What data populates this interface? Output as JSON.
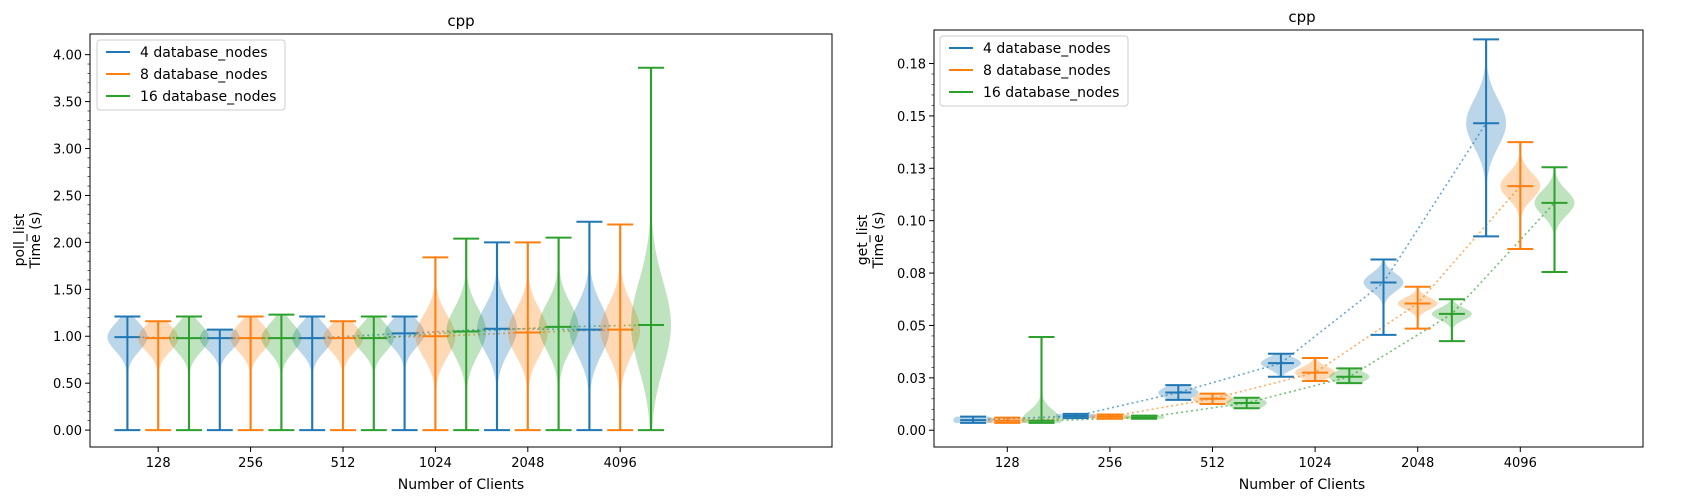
{
  "chart_data": [
    {
      "type": "violin",
      "title": "cpp",
      "xlabel": "Number of Clients",
      "ylabel_lines": [
        "poll_list",
        "Time (s)"
      ],
      "categories": [
        "128",
        "256",
        "512",
        "1024",
        "2048",
        "4096"
      ],
      "ylim": [
        -0.18,
        4.22
      ],
      "yticks": [
        "0.00",
        "0.50",
        "1.00",
        "1.50",
        "2.00",
        "2.50",
        "3.00",
        "3.50",
        "4.00"
      ],
      "ytick_values": [
        0,
        0.5,
        1,
        1.5,
        2,
        2.5,
        3,
        3.5,
        4
      ],
      "legend": {
        "position": "top-left",
        "entries": [
          "4 database_nodes",
          "8 database_nodes",
          "16 database_nodes"
        ]
      },
      "colors": {
        "4 database_nodes": "#1f77b4",
        "8 database_nodes": "#ff7f0e",
        "16 database_nodes": "#2ca02c"
      },
      "series": [
        {
          "name": "4 database_nodes",
          "min": [
            0.0,
            0.0,
            0.0,
            0.0,
            0.0,
            0.0
          ],
          "max": [
            1.21,
            1.07,
            1.21,
            1.21,
            2.0,
            2.22
          ],
          "median": [
            0.99,
            0.98,
            0.98,
            1.03,
            1.08,
            1.07
          ]
        },
        {
          "name": "8 database_nodes",
          "min": [
            0.0,
            0.0,
            0.0,
            0.0,
            0.0,
            0.0
          ],
          "max": [
            1.16,
            1.21,
            1.16,
            1.84,
            2.0,
            2.19
          ],
          "median": [
            0.98,
            0.98,
            0.98,
            1.0,
            1.04,
            1.07
          ]
        },
        {
          "name": "16 database_nodes",
          "min": [
            0.0,
            0.0,
            0.0,
            0.0,
            0.0,
            0.0
          ],
          "max": [
            1.21,
            1.23,
            1.21,
            2.04,
            2.05,
            3.86
          ],
          "median": [
            0.98,
            0.98,
            0.98,
            1.05,
            1.1,
            1.12
          ]
        }
      ]
    },
    {
      "type": "violin",
      "title": "cpp",
      "xlabel": "Number of Clients",
      "ylabel_lines": [
        "get_list",
        "Time (s)"
      ],
      "categories": [
        "128",
        "256",
        "512",
        "1024",
        "2048",
        "4096"
      ],
      "ylim": [
        -0.008,
        0.191
      ],
      "yticks": [
        "0.00",
        "0.03",
        "0.05",
        "0.08",
        "0.10",
        "0.13",
        "0.15",
        "0.18"
      ],
      "ytick_values": [
        0,
        0.025,
        0.05,
        0.075,
        0.1,
        0.125,
        0.15,
        0.175
      ],
      "legend": {
        "position": "top-left",
        "entries": [
          "4 database_nodes",
          "8 database_nodes",
          "16 database_nodes"
        ]
      },
      "colors": {
        "4 database_nodes": "#1f77b4",
        "8 database_nodes": "#ff7f0e",
        "16 database_nodes": "#2ca02c"
      },
      "series": [
        {
          "name": "4 database_nodes",
          "min": [
            0.0035,
            0.0058,
            0.0145,
            0.0255,
            0.0455,
            0.0925
          ],
          "max": [
            0.0065,
            0.0078,
            0.0215,
            0.0365,
            0.0815,
            0.1865
          ],
          "median": [
            0.0048,
            0.0068,
            0.018,
            0.032,
            0.0705,
            0.1465
          ]
        },
        {
          "name": "8 database_nodes",
          "min": [
            0.0035,
            0.0055,
            0.0125,
            0.0235,
            0.0485,
            0.0865
          ],
          "max": [
            0.006,
            0.0075,
            0.0175,
            0.0345,
            0.0685,
            0.1375
          ],
          "median": [
            0.0045,
            0.0065,
            0.015,
            0.0275,
            0.0605,
            0.1165
          ]
        },
        {
          "name": "16 database_nodes",
          "min": [
            0.0035,
            0.0055,
            0.0105,
            0.0225,
            0.0425,
            0.0755
          ],
          "max": [
            0.0445,
            0.007,
            0.0155,
            0.0295,
            0.0625,
            0.1255
          ],
          "median": [
            0.0045,
            0.006,
            0.013,
            0.0255,
            0.0555,
            0.1085
          ]
        }
      ]
    }
  ]
}
